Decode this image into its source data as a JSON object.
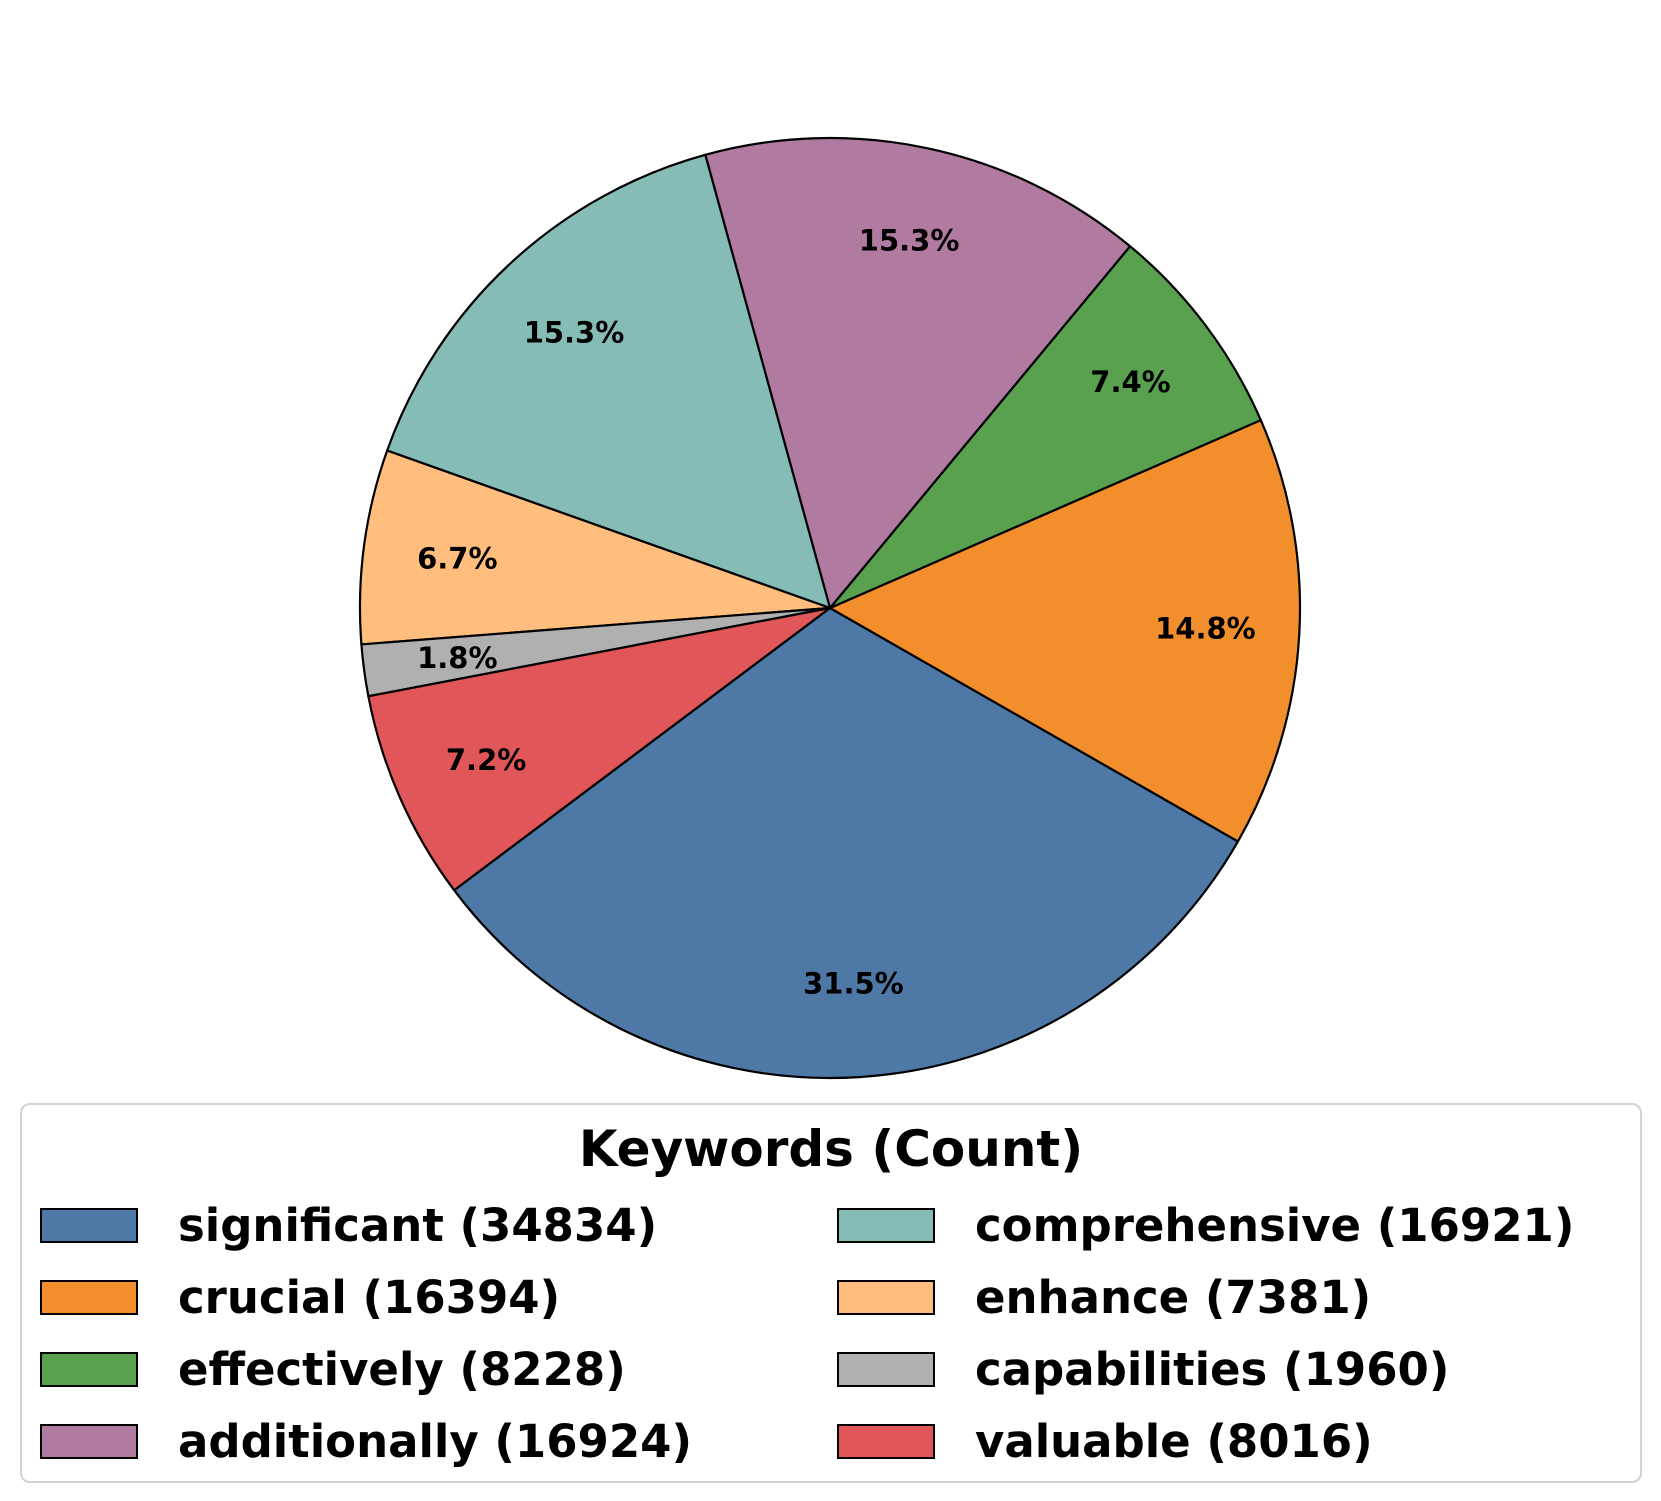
{
  "chart_data": {
    "type": "pie",
    "legend": {
      "title": "Keywords (Count)",
      "placement": "bottom",
      "columns": 2
    },
    "start_angle_deg": 216.9,
    "direction": "counterclockwise",
    "slices": [
      {
        "label": "significant",
        "count": 34834,
        "percent_label": "31.5%",
        "legend_text": "significant (34834)",
        "color": "#4e79a7"
      },
      {
        "label": "crucial",
        "count": 16394,
        "percent_label": "14.8%",
        "legend_text": "crucial (16394)",
        "color": "#f28e2b"
      },
      {
        "label": "effectively",
        "count": 8228,
        "percent_label": "7.4%",
        "legend_text": "effectively (8228)",
        "color": "#59a14f"
      },
      {
        "label": "additionally",
        "count": 16924,
        "percent_label": "15.3%",
        "legend_text": "additionally (16924)",
        "color": "#b07aa1"
      },
      {
        "label": "comprehensive",
        "count": 16921,
        "percent_label": "15.3%",
        "legend_text": "comprehensive (16921)",
        "color": "#86bcb6"
      },
      {
        "label": "enhance",
        "count": 7381,
        "percent_label": "6.7%",
        "legend_text": "enhance (7381)",
        "color": "#ffbe7d"
      },
      {
        "label": "capabilities",
        "count": 1960,
        "percent_label": "1.8%",
        "legend_text": "capabilities (1960)",
        "color": "#b0b0b0"
      },
      {
        "label": "valuable",
        "count": 8016,
        "percent_label": "7.2%",
        "legend_text": "valuable (8016)",
        "color": "#e15759"
      }
    ]
  }
}
